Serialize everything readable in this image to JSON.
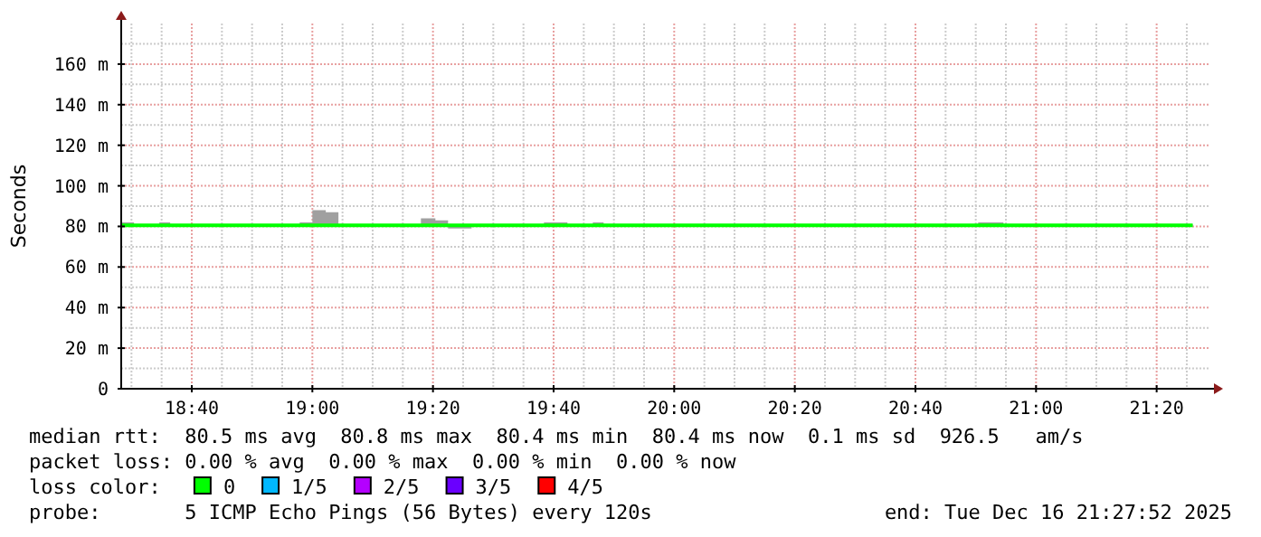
{
  "chart_data": {
    "type": "line",
    "ylabel": "Seconds",
    "legend_title": "loss color:",
    "legend": "bottom",
    "grid": true,
    "x": [
      18.472,
      18.507,
      18.577,
      18.607,
      18.965,
      19.0,
      19.037,
      19.072,
      19.3,
      19.34,
      19.375,
      19.44,
      19.64,
      19.705,
      19.775,
      19.805,
      20.84,
      20.91,
      21.433
    ],
    "series": [
      {
        "name": "0",
        "color": "#00ff00",
        "values": [
          80.5,
          80.5,
          80.5,
          80.5,
          80.5,
          80.5,
          80.5,
          80.5,
          80.5,
          80.5,
          80.5,
          80.5,
          80.5,
          80.5,
          80.5,
          80.5,
          80.5,
          80.5,
          80.5
        ],
        "upper": [
          82,
          81,
          82,
          81,
          82,
          88,
          87,
          81,
          84,
          83,
          81,
          81,
          82,
          81,
          82,
          81,
          82,
          81,
          81
        ],
        "lower": [
          80,
          80,
          80,
          80,
          80,
          80,
          80,
          80,
          80,
          80,
          79,
          80,
          80,
          80,
          80,
          80,
          80,
          80,
          80
        ]
      },
      {
        "name": "1/5",
        "color": "#00b8ff",
        "values": [
          null,
          null,
          null,
          null,
          null,
          null,
          null,
          null,
          null,
          null,
          null,
          null,
          null,
          null,
          null,
          null,
          null,
          null,
          null
        ]
      },
      {
        "name": "2/5",
        "color": "#b400ff",
        "values": [
          null,
          null,
          null,
          null,
          null,
          null,
          null,
          null,
          null,
          null,
          null,
          null,
          null,
          null,
          null,
          null,
          null,
          null,
          null
        ]
      },
      {
        "name": "3/5",
        "color": "#6a00ff",
        "values": [
          null,
          null,
          null,
          null,
          null,
          null,
          null,
          null,
          null,
          null,
          null,
          null,
          null,
          null,
          null,
          null,
          null,
          null,
          null
        ]
      },
      {
        "name": "4/5",
        "color": "#ff0000",
        "values": [
          null,
          null,
          null,
          null,
          null,
          null,
          null,
          null,
          null,
          null,
          null,
          null,
          null,
          null,
          null,
          null,
          null,
          null,
          null
        ]
      }
    ],
    "xlim": [
      18.4717,
      21.4817
    ],
    "xticks": [
      {
        "value": 18.6667,
        "label": "18:40"
      },
      {
        "value": 19,
        "label": "19:00"
      },
      {
        "value": 19.3333,
        "label": "19:20"
      },
      {
        "value": 19.6667,
        "label": "19:40"
      },
      {
        "value": 20,
        "label": "20:00"
      },
      {
        "value": 20.3333,
        "label": "20:20"
      },
      {
        "value": 20.6667,
        "label": "20:40"
      },
      {
        "value": 21,
        "label": "21:00"
      },
      {
        "value": 21.3333,
        "label": "21:20"
      }
    ],
    "ylim": [
      0,
      180
    ],
    "yticks": [
      0,
      {
        "value": 20,
        "label": "20 m"
      },
      {
        "value": 40,
        "label": "40 m"
      },
      {
        "value": 60,
        "label": "60 m"
      },
      {
        "value": 80,
        "label": "80 m"
      },
      {
        "value": 100,
        "label": "100 m"
      },
      {
        "value": 120,
        "label": "120 m"
      },
      {
        "value": 140,
        "label": "140 m"
      },
      {
        "value": 160,
        "label": "160 m"
      }
    ],
    "annotations": [
      "median rtt:  80.5 ms avg  80.8 ms max  80.4 ms min  80.4 ms now  0.1 ms sd  926.5   am/s",
      "packet loss: 0.00 % avg  0.00 % max  0.00 % min  0.00 % now",
      "probe:       5 ICMP Echo Pings (56 Bytes) every 120s",
      "end: Tue Dec 16 21:27:52 2025"
    ]
  }
}
